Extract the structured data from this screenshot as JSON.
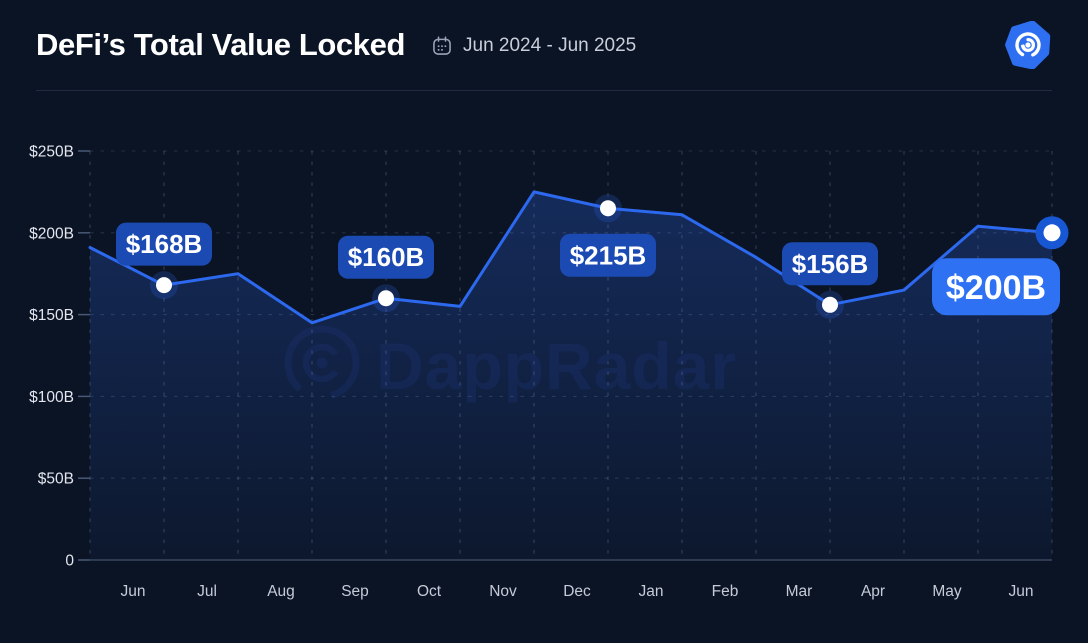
{
  "header": {
    "title": "DeFi’s Total Value Locked",
    "date_range": "Jun 2024 - Jun 2025",
    "logo_name": "dappradar-logo"
  },
  "watermark": {
    "text": "DappRadar"
  },
  "chart_data": {
    "type": "area",
    "title": "DeFi's Total Value Locked",
    "unit": "USD billions",
    "categories": [
      "Jun",
      "Jul",
      "Aug",
      "Sep",
      "Oct",
      "Nov",
      "Dec",
      "Jan",
      "Feb",
      "Mar",
      "Apr",
      "May",
      "Jun"
    ],
    "values": [
      168,
      175,
      145,
      160,
      155,
      225,
      215,
      211,
      185,
      156,
      165,
      204,
      200
    ],
    "lead_in_value": 191,
    "ylim": [
      0,
      250
    ],
    "y_tick_step": 50,
    "y_tick_labels": [
      "$250B",
      "$200B",
      "$150B",
      "$100B",
      "$50B",
      "0"
    ],
    "grid": "dashed",
    "legend": "none",
    "labeled_points": [
      {
        "category_index": 0,
        "month": "Jun 2024",
        "value": 168,
        "label": "$168B",
        "placement": "above",
        "emphasis": false
      },
      {
        "category_index": 3,
        "month": "Sep 2024",
        "value": 160,
        "label": "$160B",
        "placement": "above",
        "emphasis": false
      },
      {
        "category_index": 6,
        "month": "Dec 2024",
        "value": 215,
        "label": "$215B",
        "placement": "below",
        "emphasis": false
      },
      {
        "category_index": 9,
        "month": "Mar 2025",
        "value": 156,
        "label": "$156B",
        "placement": "above",
        "emphasis": false
      },
      {
        "category_index": 12,
        "month": "Jun 2025",
        "value": 200,
        "label": "$200B",
        "placement": "below-left",
        "emphasis": true
      }
    ],
    "colors": {
      "line": "#2c69ef",
      "area_top": "rgba(44,98,220,0.32)",
      "area_bottom": "rgba(44,98,220,0.05)",
      "badge": "#1b4ab3",
      "badge_emphasis": "#2e71f3",
      "badge_text": "#ffffff",
      "marker": "#ffffff",
      "marker_ring": "#1757d4",
      "grid": "rgba(150,168,208,0.26)",
      "axis_text": "#c6cbd8",
      "y_axis_text": "#e3e6ef",
      "watermark": "#1a2f68"
    }
  }
}
